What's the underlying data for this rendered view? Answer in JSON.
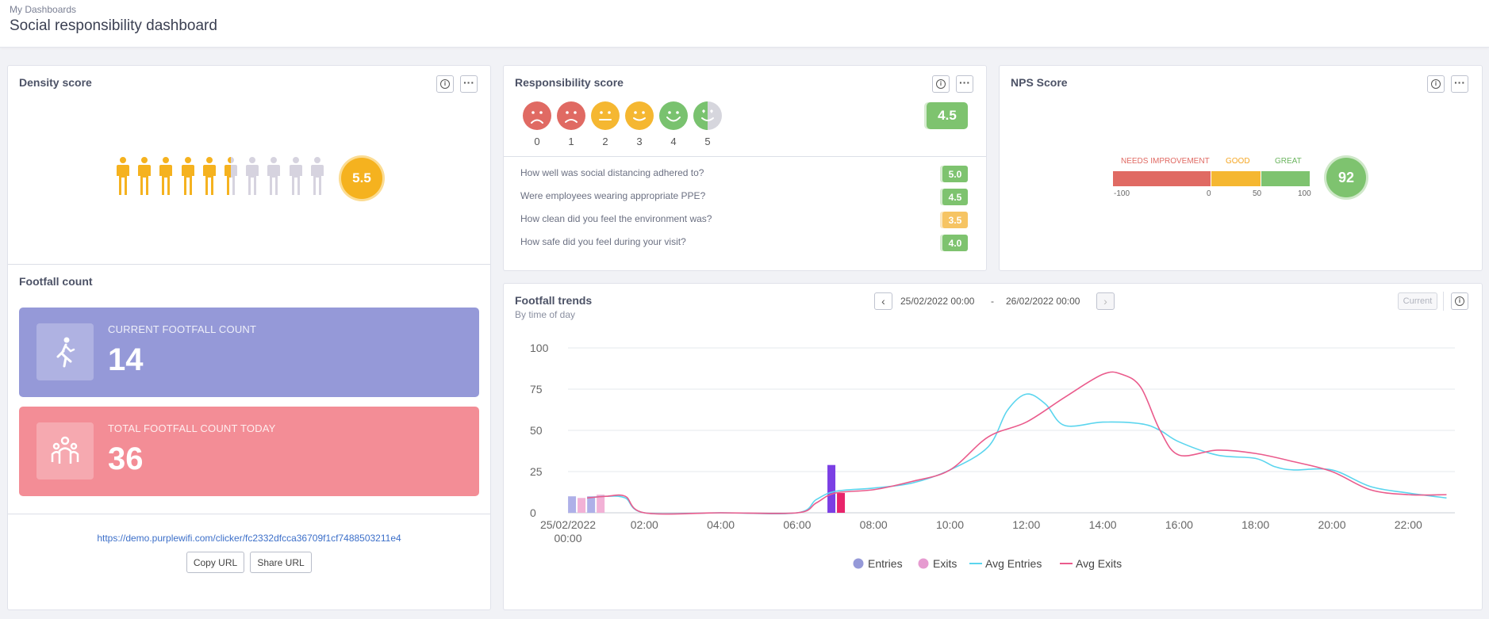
{
  "header": {
    "breadcrumb": "My Dashboards",
    "title": "Social responsibility dashboard"
  },
  "density": {
    "title": "Density score",
    "score": "5.5",
    "people_total": 10,
    "people_filled": 5.5,
    "color_filled": "#f5b21f",
    "color_empty": "#d6d3df"
  },
  "footfall": {
    "title": "Footfall count",
    "current_label": "CURRENT FOOTFALL COUNT",
    "current_value": "14",
    "current_color": "#9599d8",
    "total_label": "TOTAL FOOTFALL COUNT TODAY",
    "total_value": "36",
    "total_color": "#f38d96",
    "url": "https://demo.purplewifi.com/clicker/fc2332dfcca36709f1cf7488503211e4",
    "copy_label": "Copy URL",
    "share_label": "Share URL"
  },
  "responsibility": {
    "title": "Responsibility score",
    "overall": "4.5",
    "faces": [
      {
        "label": "0",
        "color": "#e06a63",
        "icon": "very-sad-face-icon"
      },
      {
        "label": "1",
        "color": "#e06a63",
        "icon": "sad-face-icon"
      },
      {
        "label": "2",
        "color": "#f5b731",
        "icon": "neutral-face-icon"
      },
      {
        "label": "3",
        "color": "#f5b731",
        "icon": "slight-smile-face-icon"
      },
      {
        "label": "4",
        "color": "#79c26f",
        "icon": "smile-face-icon"
      },
      {
        "label": "5",
        "color": "#79c26f",
        "icon": "love-face-icon"
      }
    ],
    "questions": [
      {
        "text": "How well was social distancing adhered to?",
        "score": "5.0",
        "color": "#7ec36f"
      },
      {
        "text": "Were employees wearing appropriate PPE?",
        "score": "4.5",
        "color": "#7ec36f"
      },
      {
        "text": "How clean did you feel the environment was?",
        "score": "3.5",
        "color": "#f6c463"
      },
      {
        "text": "How safe did you feel during your visit?",
        "score": "4.0",
        "color": "#7ec36f"
      }
    ]
  },
  "nps": {
    "title": "NPS Score",
    "score": "92",
    "labels": {
      "needs": "NEEDS IMPROVEMENT",
      "good": "GOOD",
      "great": "GREAT"
    },
    "ticks": [
      "-100",
      "0",
      "50",
      "100"
    ],
    "colors": {
      "needs": "#e06a63",
      "good": "#f5b731",
      "great": "#7ec36f"
    }
  },
  "trends": {
    "title": "Footfall trends",
    "subtitle": "By time of day",
    "date_from": "25/02/2022 00:00",
    "date_sep": "-",
    "date_to": "26/02/2022 00:00",
    "current_label": "Current",
    "chart_data": {
      "type": "line",
      "ylim": [
        0,
        100
      ],
      "yticks": [
        "0",
        "25",
        "50",
        "75",
        "100"
      ],
      "xticks": [
        {
          "h": 0,
          "label": "25/02/2022",
          "label2": "00:00"
        },
        {
          "h": 2,
          "label": "02:00"
        },
        {
          "h": 4,
          "label": "04:00"
        },
        {
          "h": 6,
          "label": "06:00"
        },
        {
          "h": 8,
          "label": "08:00"
        },
        {
          "h": 10,
          "label": "10:00"
        },
        {
          "h": 12,
          "label": "12:00"
        },
        {
          "h": 14,
          "label": "14:00"
        },
        {
          "h": 16,
          "label": "16:00"
        },
        {
          "h": 18,
          "label": "18:00"
        },
        {
          "h": 20,
          "label": "20:00"
        },
        {
          "h": 22,
          "label": "22:00"
        }
      ],
      "bars": [
        {
          "name": "Entries",
          "h": 0.5,
          "value": 10,
          "color": "#aeb0e8"
        },
        {
          "name": "Exits",
          "h": 0.5,
          "value": 9,
          "color": "#f2b1d6"
        },
        {
          "name": "Entries",
          "h": 1,
          "value": 10,
          "color": "#aeb0e8"
        },
        {
          "name": "Exits",
          "h": 1,
          "value": 11,
          "color": "#f2b1d6"
        },
        {
          "name": "Entries",
          "h": 7,
          "value": 29,
          "color": "#7b3fe4"
        },
        {
          "name": "Exits",
          "h": 7,
          "value": 12,
          "color": "#e8246b"
        }
      ],
      "series": [
        {
          "name": "Avg Entries",
          "color": "#5bd5ee",
          "points": [
            [
              0.5,
              9
            ],
            [
              1,
              10
            ],
            [
              1.5,
              9
            ],
            [
              2,
              0
            ],
            [
              4,
              0
            ],
            [
              6,
              0
            ],
            [
              6.5,
              8
            ],
            [
              7,
              13
            ],
            [
              8,
              15
            ],
            [
              9,
              18
            ],
            [
              10,
              26
            ],
            [
              11,
              40
            ],
            [
              11.5,
              62
            ],
            [
              12,
              72
            ],
            [
              12.5,
              66
            ],
            [
              13,
              53
            ],
            [
              14,
              55
            ],
            [
              15,
              54
            ],
            [
              15.5,
              50
            ],
            [
              16,
              43
            ],
            [
              17,
              35
            ],
            [
              18,
              33
            ],
            [
              18.5,
              28
            ],
            [
              19,
              26
            ],
            [
              20,
              26
            ],
            [
              21,
              16
            ],
            [
              22,
              12
            ],
            [
              23,
              9
            ]
          ]
        },
        {
          "name": "Avg Exits",
          "color": "#ea5b8c",
          "points": [
            [
              0.5,
              9
            ],
            [
              1,
              10
            ],
            [
              1.5,
              10
            ],
            [
              2,
              0
            ],
            [
              4,
              0
            ],
            [
              6,
              0
            ],
            [
              6.5,
              6
            ],
            [
              7,
              12
            ],
            [
              8,
              14
            ],
            [
              9,
              19
            ],
            [
              10,
              26
            ],
            [
              11,
              46
            ],
            [
              12,
              55
            ],
            [
              13,
              70
            ],
            [
              14,
              84
            ],
            [
              14.5,
              84
            ],
            [
              15,
              76
            ],
            [
              15.5,
              50
            ],
            [
              16,
              35
            ],
            [
              17,
              38
            ],
            [
              18,
              36
            ],
            [
              19,
              31
            ],
            [
              20,
              25
            ],
            [
              21,
              14
            ],
            [
              22,
              11
            ],
            [
              23,
              11
            ]
          ]
        }
      ],
      "legend": [
        {
          "name": "Entries",
          "kind": "dot",
          "color": "#9599d8"
        },
        {
          "name": "Exits",
          "kind": "dot",
          "color": "#e69bd0"
        },
        {
          "name": "Avg Entries",
          "kind": "line",
          "color": "#5bd5ee"
        },
        {
          "name": "Avg Exits",
          "kind": "line",
          "color": "#ea5b8c"
        }
      ]
    }
  }
}
